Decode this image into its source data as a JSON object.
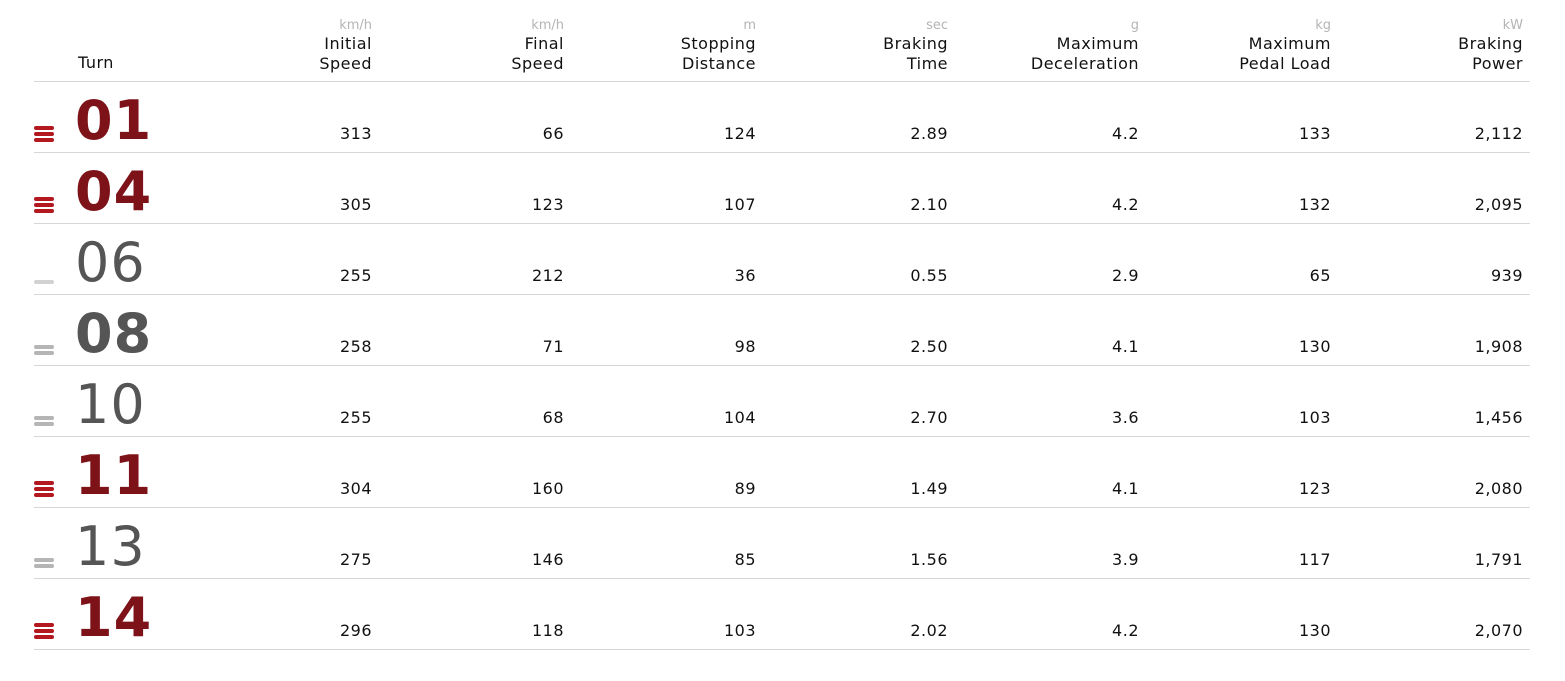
{
  "columns": [
    {
      "unit": "km/h",
      "line1": "Initial",
      "line2": "Speed"
    },
    {
      "unit": "km/h",
      "line1": "Final",
      "line2": "Speed"
    },
    {
      "unit": "m",
      "line1": "Stopping",
      "line2": "Distance"
    },
    {
      "unit": "sec",
      "line1": "Braking",
      "line2": "Time"
    },
    {
      "unit": "g",
      "line1": "Maximum",
      "line2": "Deceleration"
    },
    {
      "unit": "kg",
      "line1": "Maximum",
      "line2": "Pedal Load"
    },
    {
      "unit": "kW",
      "line1": "Braking",
      "line2": "Power"
    }
  ],
  "turn_header": "Turn",
  "colors": {
    "hard": "#7d1218",
    "hard_bar": "#b3191f",
    "soft": "#555555",
    "soft_bar": "#b5b5b5",
    "light_bar": "#d2d2d2"
  },
  "rows": [
    {
      "turn": "01",
      "difficulty": 3,
      "values": [
        "313",
        "66",
        "124",
        "2.89",
        "4.2",
        "133",
        "2,112"
      ]
    },
    {
      "turn": "04",
      "difficulty": 3,
      "values": [
        "305",
        "123",
        "107",
        "2.10",
        "4.2",
        "132",
        "2,095"
      ]
    },
    {
      "turn": "06",
      "difficulty": 1,
      "values": [
        "255",
        "212",
        "36",
        "0.55",
        "2.9",
        "65",
        "939"
      ]
    },
    {
      "turn": "08",
      "difficulty": 2,
      "values": [
        "258",
        "71",
        "98",
        "2.50",
        "4.1",
        "130",
        "1,908"
      ]
    },
    {
      "turn": "10",
      "difficulty": 2,
      "values": [
        "255",
        "68",
        "104",
        "2.70",
        "3.6",
        "103",
        "1,456"
      ]
    },
    {
      "turn": "11",
      "difficulty": 3,
      "values": [
        "304",
        "160",
        "89",
        "1.49",
        "4.1",
        "123",
        "2,080"
      ]
    },
    {
      "turn": "13",
      "difficulty": 2,
      "values": [
        "275",
        "146",
        "85",
        "1.56",
        "3.9",
        "117",
        "1,791"
      ]
    },
    {
      "turn": "14",
      "difficulty": 3,
      "values": [
        "296",
        "118",
        "103",
        "2.02",
        "4.2",
        "130",
        "2,070"
      ]
    }
  ]
}
